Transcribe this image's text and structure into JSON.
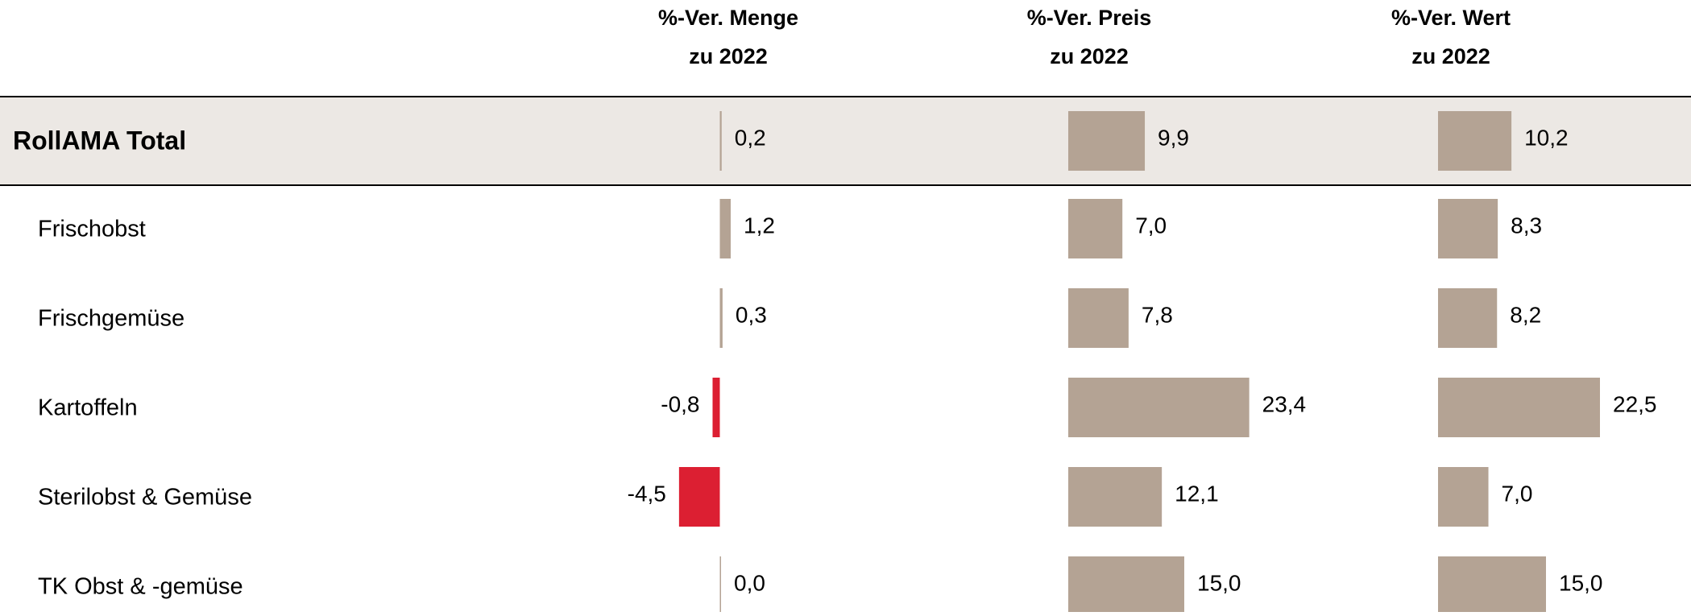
{
  "chart_data": {
    "type": "bar",
    "categories": [
      "RollAMA Total",
      "Frischobst",
      "Frischgemüse",
      "Kartoffeln",
      "Sterilobst & Gemüse",
      "TK Obst & -gemüse"
    ],
    "color": "#b4a394",
    "negative_color": "#dc1f32",
    "series": [
      {
        "name": "%-Ver. Menge\nzu 2022",
        "values": [
          0.2,
          1.2,
          0.3,
          -0.8,
          -4.5,
          0.0
        ],
        "value_labels": [
          "0,2",
          "1,2",
          "0,3",
          "-0,8",
          "-4,5",
          "0,0"
        ],
        "xlim": [
          -10,
          10
        ]
      },
      {
        "name": "%-Ver. Preis\nzu 2022",
        "values": [
          9.9,
          7.0,
          7.8,
          23.4,
          12.1,
          15.0
        ],
        "value_labels": [
          "9,9",
          "7,0",
          "7,8",
          "23,4",
          "12,1",
          "15,0"
        ],
        "xlim": [
          0,
          30
        ]
      },
      {
        "name": "%-Ver. Wert\nzu 2022",
        "values": [
          10.2,
          8.3,
          8.2,
          22.5,
          7.0,
          15.0
        ],
        "value_labels": [
          "10,2",
          "8,3",
          "8,2",
          "22,5",
          "7,0",
          "15,0"
        ],
        "xlim": [
          0,
          30
        ]
      }
    ]
  }
}
